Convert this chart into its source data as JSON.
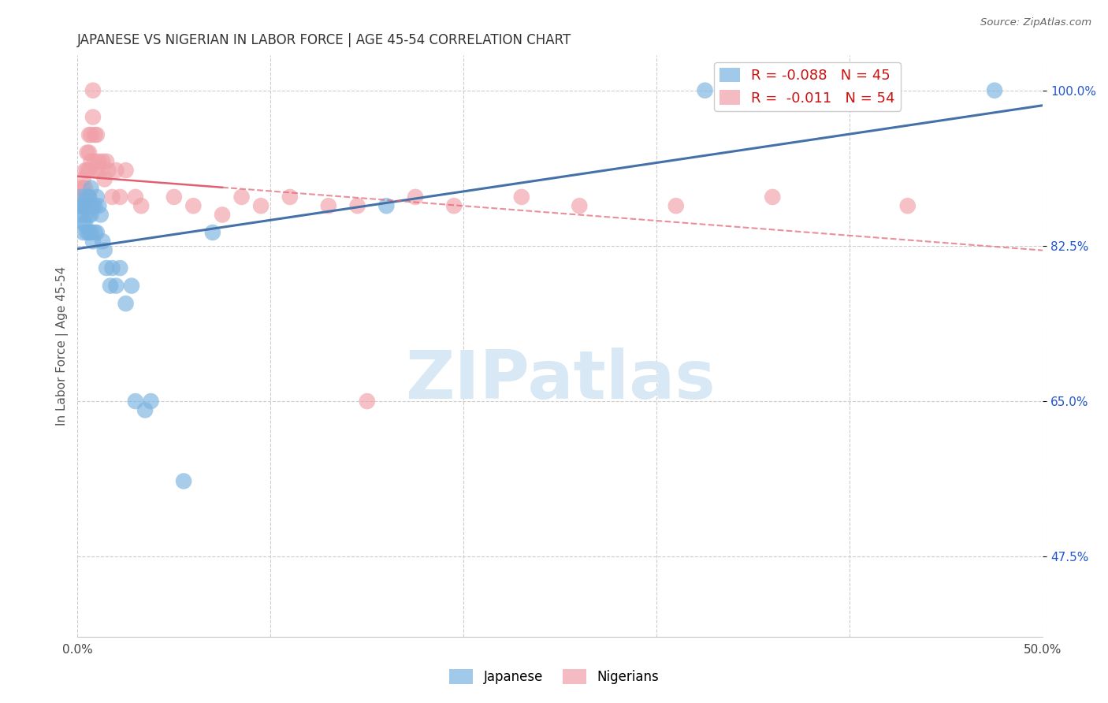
{
  "title": "JAPANESE VS NIGERIAN IN LABOR FORCE | AGE 45-54 CORRELATION CHART",
  "source": "Source: ZipAtlas.com",
  "ylabel": "In Labor Force | Age 45-54",
  "xlim": [
    0.0,
    0.5
  ],
  "ylim": [
    0.385,
    1.04
  ],
  "ytick_values": [
    0.475,
    0.65,
    0.825,
    1.0
  ],
  "ytick_labels": [
    "47.5%",
    "65.0%",
    "82.5%",
    "100.0%"
  ],
  "xtick_positions": [
    0.0,
    0.1,
    0.2,
    0.3,
    0.4,
    0.5
  ],
  "xticklabels": [
    "0.0%",
    "",
    "",
    "",
    "",
    "50.0%"
  ],
  "legend_japanese_R": "-0.088",
  "legend_japanese_N": "45",
  "legend_nigerian_R": "-0.011",
  "legend_nigerian_N": "54",
  "legend_labels": [
    "Japanese",
    "Nigerians"
  ],
  "blue_color": "#7ab3e0",
  "pink_color": "#f0a0a8",
  "blue_line_color": "#4472a8",
  "pink_line_color": "#e06070",
  "watermark": "ZIPatlas",
  "watermark_color": "#d8e8f5",
  "background_color": "#ffffff",
  "grid_color": "#cccccc",
  "japanese_x": [
    0.001,
    0.002,
    0.002,
    0.003,
    0.003,
    0.003,
    0.004,
    0.004,
    0.004,
    0.005,
    0.005,
    0.005,
    0.006,
    0.006,
    0.006,
    0.006,
    0.007,
    0.007,
    0.007,
    0.007,
    0.008,
    0.008,
    0.009,
    0.009,
    0.01,
    0.01,
    0.011,
    0.012,
    0.013,
    0.014,
    0.015,
    0.017,
    0.018,
    0.02,
    0.022,
    0.025,
    0.028,
    0.03,
    0.035,
    0.038,
    0.055,
    0.07,
    0.16,
    0.325,
    0.475
  ],
  "japanese_y": [
    0.87,
    0.86,
    0.88,
    0.87,
    0.85,
    0.84,
    0.87,
    0.86,
    0.85,
    0.88,
    0.87,
    0.84,
    0.88,
    0.87,
    0.86,
    0.84,
    0.89,
    0.87,
    0.86,
    0.84,
    0.87,
    0.83,
    0.87,
    0.84,
    0.88,
    0.84,
    0.87,
    0.86,
    0.83,
    0.82,
    0.8,
    0.78,
    0.8,
    0.78,
    0.8,
    0.76,
    0.78,
    0.65,
    0.64,
    0.65,
    0.56,
    0.84,
    0.87,
    1.0,
    1.0
  ],
  "nigerian_x": [
    0.001,
    0.001,
    0.002,
    0.002,
    0.002,
    0.003,
    0.003,
    0.003,
    0.004,
    0.004,
    0.004,
    0.005,
    0.005,
    0.005,
    0.006,
    0.006,
    0.006,
    0.006,
    0.007,
    0.007,
    0.008,
    0.008,
    0.009,
    0.009,
    0.01,
    0.01,
    0.011,
    0.012,
    0.013,
    0.014,
    0.015,
    0.016,
    0.018,
    0.02,
    0.022,
    0.025,
    0.03,
    0.033,
    0.05,
    0.06,
    0.075,
    0.085,
    0.095,
    0.11,
    0.13,
    0.145,
    0.15,
    0.175,
    0.195,
    0.23,
    0.26,
    0.31,
    0.36,
    0.43
  ],
  "nigerian_y": [
    0.88,
    0.87,
    0.89,
    0.88,
    0.87,
    0.9,
    0.89,
    0.87,
    0.91,
    0.89,
    0.87,
    0.93,
    0.91,
    0.88,
    0.95,
    0.93,
    0.91,
    0.88,
    0.95,
    0.92,
    1.0,
    0.97,
    0.95,
    0.92,
    0.95,
    0.91,
    0.92,
    0.91,
    0.92,
    0.9,
    0.92,
    0.91,
    0.88,
    0.91,
    0.88,
    0.91,
    0.88,
    0.87,
    0.88,
    0.87,
    0.86,
    0.88,
    0.87,
    0.88,
    0.87,
    0.87,
    0.65,
    0.88,
    0.87,
    0.88,
    0.87,
    0.87,
    0.88,
    0.87
  ]
}
